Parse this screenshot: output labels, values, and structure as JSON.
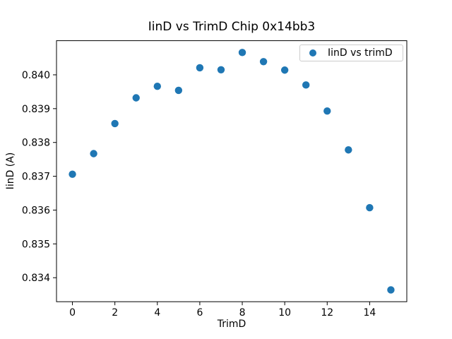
{
  "chart_data": {
    "type": "scatter",
    "title": "IinD vs TrimD Chip 0x14bb3",
    "xlabel": "TrimD",
    "ylabel": "IinD (A)",
    "legend": [
      {
        "label": "IinD vs trimD"
      }
    ],
    "legend_position": "upper right",
    "x": [
      0,
      1,
      2,
      3,
      4,
      5,
      6,
      7,
      8,
      9,
      10,
      11,
      12,
      13,
      14,
      15
    ],
    "y": [
      0.83706,
      0.83767,
      0.83856,
      0.83932,
      0.83966,
      0.83954,
      0.84021,
      0.84015,
      0.84066,
      0.84039,
      0.84014,
      0.8397,
      0.83893,
      0.83778,
      0.83607,
      0.83364
    ],
    "xlim": [
      -0.75,
      15.75
    ],
    "ylim": [
      0.83329,
      0.84101
    ],
    "xticks": [
      0,
      2,
      4,
      6,
      8,
      10,
      12,
      14
    ],
    "yticks": [
      0.834,
      0.835,
      0.836,
      0.837,
      0.838,
      0.839,
      0.84
    ],
    "ytick_decimals": 3,
    "grid": false,
    "marker_color": "#1f77b4",
    "spine_color": "#000000",
    "background_color": "#ffffff"
  }
}
